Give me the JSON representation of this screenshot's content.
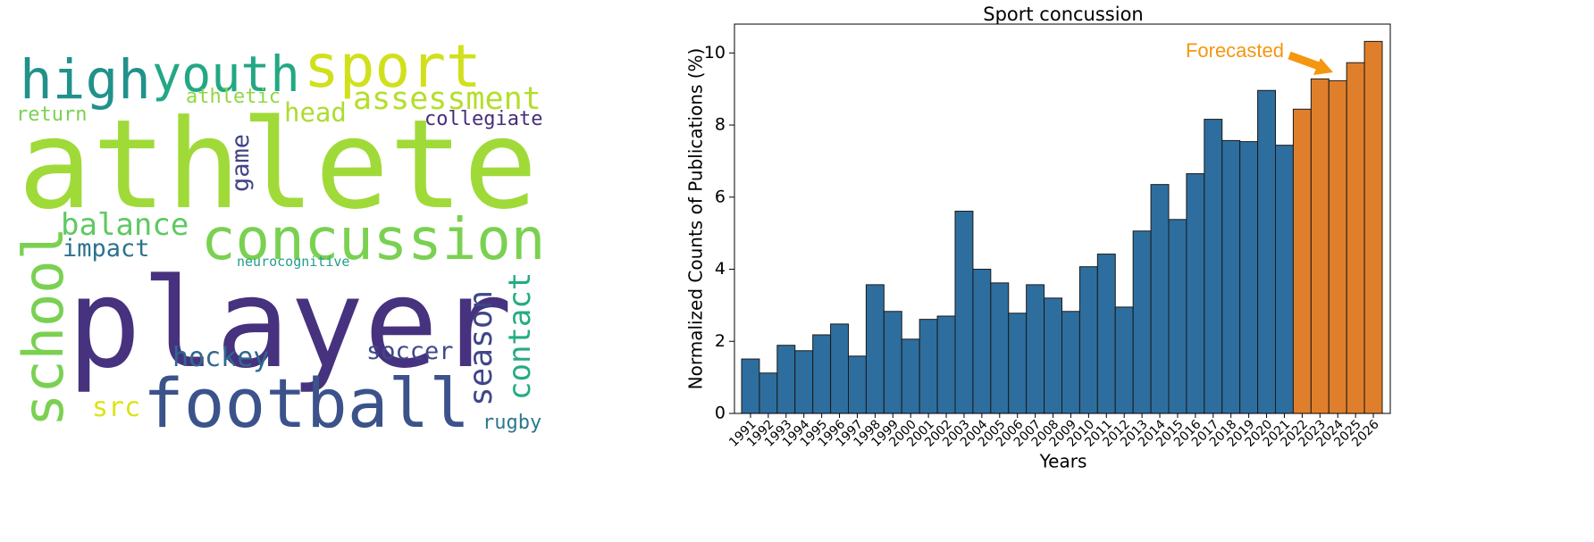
{
  "word_cloud": {
    "words": [
      "athlete",
      "player",
      "football",
      "concussion",
      "sport",
      "high",
      "youth",
      "assessment",
      "athletic",
      "head",
      "collegiate",
      "return",
      "balance",
      "impact",
      "neurocognitive",
      "hockey",
      "soccer",
      "src",
      "rugby",
      "school",
      "game",
      "season",
      "contact"
    ],
    "colors": [
      "#a0da39",
      "#46327e",
      "#3b528b",
      "#7ad151",
      "#d0e11c",
      "#21918c",
      "#22a884",
      "#b5de2b",
      "#90d743",
      "#addc30",
      "#472d7b",
      "#7ad151",
      "#5ec962",
      "#2c728e",
      "#1f9e89",
      "#31688e",
      "#3e4989",
      "#dde318",
      "#2a788e",
      "#7ad151",
      "#414487",
      "#404688",
      "#25ab82"
    ]
  },
  "chart_data": {
    "type": "bar",
    "title": "Sport concussion",
    "x_label": "Years",
    "y_label": "Normalized Counts of Publications (%)",
    "categories": [
      "1991",
      "1992",
      "1993",
      "1994",
      "1995",
      "1996",
      "1997",
      "1998",
      "1999",
      "2000",
      "2001",
      "2002",
      "2003",
      "2004",
      "2005",
      "2006",
      "2007",
      "2008",
      "2009",
      "2010",
      "2011",
      "2012",
      "2013",
      "2014",
      "2015",
      "2016",
      "2017",
      "2018",
      "2019",
      "2020",
      "2021",
      "2022",
      "2023",
      "2024",
      "2025",
      "2026"
    ],
    "values": [
      1.51,
      1.12,
      1.89,
      1.74,
      2.18,
      2.48,
      1.59,
      3.57,
      2.83,
      2.06,
      2.61,
      2.7,
      5.61,
      4.0,
      3.62,
      2.78,
      3.57,
      3.2,
      2.83,
      4.07,
      4.42,
      2.95,
      5.06,
      6.35,
      5.38,
      6.65,
      8.16,
      7.57,
      7.54,
      8.96,
      7.44,
      8.44,
      9.28,
      9.23,
      9.73,
      10.32
    ],
    "colors": [
      "#2e6e9e",
      "#2e6e9e",
      "#2e6e9e",
      "#2e6e9e",
      "#2e6e9e",
      "#2e6e9e",
      "#2e6e9e",
      "#2e6e9e",
      "#2e6e9e",
      "#2e6e9e",
      "#2e6e9e",
      "#2e6e9e",
      "#2e6e9e",
      "#2e6e9e",
      "#2e6e9e",
      "#2e6e9e",
      "#2e6e9e",
      "#2e6e9e",
      "#2e6e9e",
      "#2e6e9e",
      "#2e6e9e",
      "#2e6e9e",
      "#2e6e9e",
      "#2e6e9e",
      "#2e6e9e",
      "#2e6e9e",
      "#2e6e9e",
      "#2e6e9e",
      "#2e6e9e",
      "#2e6e9e",
      "#2e6e9e",
      "#e07f2b",
      "#e07f2b",
      "#e07f2b",
      "#e07f2b",
      "#e07f2b"
    ],
    "ylim": [
      0,
      10.8
    ],
    "yticks": [
      0,
      2,
      4,
      6,
      8,
      10
    ],
    "annotation": {
      "text": "Forecasted",
      "color": "#f5960f"
    }
  }
}
